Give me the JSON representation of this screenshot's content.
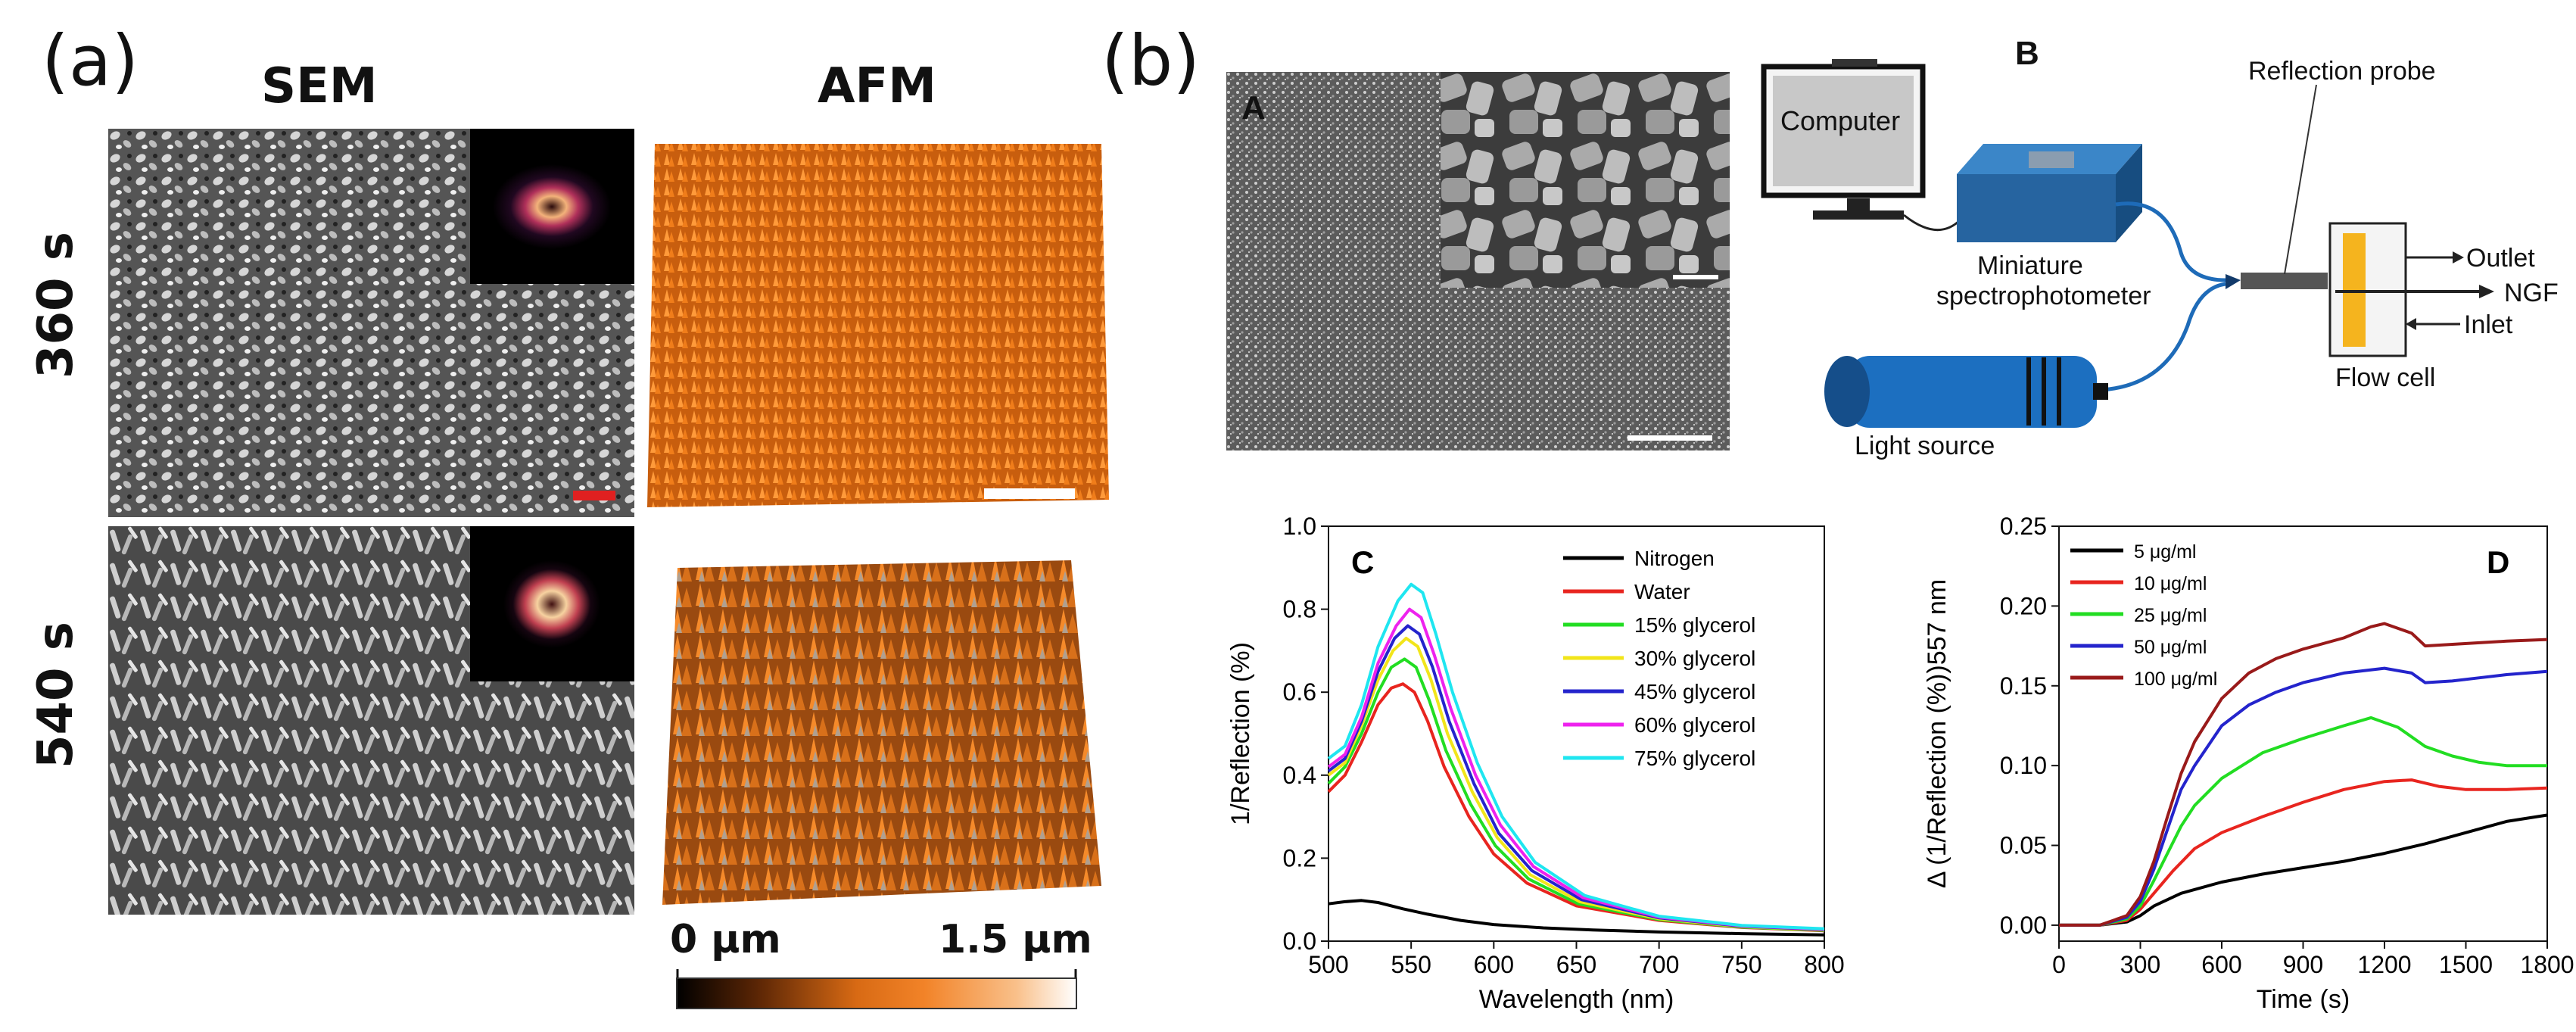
{
  "panel_a": {
    "letter": "(a)",
    "col_sem": "SEM",
    "col_afm": "AFM",
    "row_top": "360 s",
    "row_bottom": "540 s",
    "colorbar": {
      "min_label": "0 μm",
      "max_label": "1.5 μm"
    }
  },
  "panel_b": {
    "letter": "(b)",
    "subpanel_A": "A",
    "subpanel_B": "B",
    "diagram": {
      "computer": "Computer",
      "spectro_line1": "Miniature",
      "spectro_line2": "spectrophotometer",
      "light_source": "Light source",
      "reflection_probe": "Reflection probe",
      "outlet": "Outlet",
      "ngf": "NGF",
      "inlet": "Inlet",
      "flow_cell": "Flow cell"
    }
  },
  "colors": {
    "afm_orange": "#f07d1a",
    "flow_blue": "#1f6fb2",
    "nitrogen": "#000000",
    "water": "#e8251f",
    "g15": "#22dd22",
    "g30": "#f2e51a",
    "g45": "#2424cc",
    "g60": "#ee22ee",
    "g75": "#1fe6f0"
  },
  "chart_data": [
    {
      "id": "C",
      "type": "line",
      "label": "C",
      "xlabel": "Wavelength (nm)",
      "ylabel": "1/Reflection (%)",
      "xlim": [
        500,
        800
      ],
      "ylim": [
        0.0,
        1.0
      ],
      "xticks": [
        500,
        550,
        600,
        650,
        700,
        750,
        800
      ],
      "yticks": [
        0.0,
        0.2,
        0.4,
        0.6,
        0.8,
        1.0
      ],
      "xtick_labels": [
        "500",
        "550",
        "600",
        "650",
        "700",
        "750",
        "800"
      ],
      "ytick_labels": [
        "0.0",
        "0.2",
        "0.4",
        "0.6",
        "0.8",
        "1.0"
      ],
      "series": [
        {
          "name": "Nitrogen",
          "color": "#000000",
          "x": [
            500,
            510,
            520,
            530,
            545,
            560,
            580,
            600,
            630,
            660,
            700,
            750,
            800
          ],
          "y": [
            0.09,
            0.095,
            0.098,
            0.093,
            0.078,
            0.065,
            0.05,
            0.04,
            0.032,
            0.027,
            0.022,
            0.018,
            0.015
          ]
        },
        {
          "name": "Water",
          "color": "#e8251f",
          "x": [
            500,
            510,
            520,
            530,
            538,
            545,
            552,
            560,
            570,
            585,
            600,
            620,
            650,
            700,
            750,
            800
          ],
          "y": [
            0.36,
            0.4,
            0.48,
            0.57,
            0.61,
            0.62,
            0.6,
            0.53,
            0.42,
            0.3,
            0.21,
            0.14,
            0.085,
            0.05,
            0.033,
            0.025
          ]
        },
        {
          "name": "15% glycerol",
          "color": "#22dd22",
          "x": [
            500,
            510,
            520,
            530,
            538,
            546,
            553,
            561,
            571,
            586,
            601,
            621,
            651,
            700,
            750,
            800
          ],
          "y": [
            0.38,
            0.42,
            0.5,
            0.6,
            0.66,
            0.68,
            0.66,
            0.58,
            0.46,
            0.33,
            0.23,
            0.15,
            0.09,
            0.052,
            0.034,
            0.026
          ]
        },
        {
          "name": "30% glycerol",
          "color": "#f2e51a",
          "x": [
            500,
            510,
            520,
            530,
            539,
            547,
            554,
            562,
            572,
            587,
            602,
            622,
            652,
            700,
            750,
            800
          ],
          "y": [
            0.4,
            0.43,
            0.52,
            0.63,
            0.7,
            0.73,
            0.71,
            0.63,
            0.5,
            0.36,
            0.25,
            0.16,
            0.095,
            0.054,
            0.035,
            0.027
          ]
        },
        {
          "name": "45% glycerol",
          "color": "#2424cc",
          "x": [
            500,
            510,
            520,
            530,
            540,
            548,
            555,
            563,
            573,
            588,
            603,
            623,
            653,
            700,
            750,
            800
          ],
          "y": [
            0.41,
            0.44,
            0.53,
            0.65,
            0.73,
            0.76,
            0.74,
            0.66,
            0.53,
            0.38,
            0.26,
            0.17,
            0.1,
            0.056,
            0.036,
            0.028
          ]
        },
        {
          "name": "60% glycerol",
          "color": "#ee22ee",
          "x": [
            500,
            510,
            520,
            530,
            541,
            549,
            556,
            564,
            574,
            589,
            604,
            624,
            654,
            700,
            750,
            800
          ],
          "y": [
            0.42,
            0.45,
            0.54,
            0.67,
            0.76,
            0.8,
            0.78,
            0.69,
            0.56,
            0.4,
            0.28,
            0.18,
            0.105,
            0.058,
            0.037,
            0.029
          ]
        },
        {
          "name": "75% glycerol",
          "color": "#1fe6f0",
          "x": [
            500,
            510,
            520,
            530,
            542,
            550,
            557,
            565,
            575,
            590,
            605,
            625,
            655,
            700,
            750,
            800
          ],
          "y": [
            0.44,
            0.47,
            0.57,
            0.71,
            0.82,
            0.86,
            0.84,
            0.74,
            0.6,
            0.43,
            0.3,
            0.19,
            0.11,
            0.06,
            0.038,
            0.03
          ]
        }
      ]
    },
    {
      "id": "D",
      "type": "line",
      "label": "D",
      "xlabel": "Time (s)",
      "ylabel": "Δ (1/Reflection (%))557 nm",
      "xlim": [
        0,
        1800
      ],
      "ylim": [
        -0.01,
        0.25
      ],
      "xticks": [
        0,
        300,
        600,
        900,
        1200,
        1500,
        1800
      ],
      "yticks": [
        0.0,
        0.05,
        0.1,
        0.15,
        0.2,
        0.25
      ],
      "xtick_labels": [
        "0",
        "300",
        "600",
        "900",
        "1200",
        "1500",
        "1800"
      ],
      "ytick_labels": [
        "0.00",
        "0.05",
        "0.10",
        "0.15",
        "0.20",
        "0.25"
      ],
      "series": [
        {
          "name": "5 μg/ml",
          "color": "#000000",
          "x": [
            0,
            150,
            250,
            300,
            350,
            450,
            600,
            750,
            900,
            1050,
            1200,
            1350,
            1500,
            1650,
            1800
          ],
          "y": [
            0,
            0,
            0.002,
            0.006,
            0.012,
            0.02,
            0.027,
            0.032,
            0.036,
            0.04,
            0.045,
            0.051,
            0.058,
            0.065,
            0.069
          ]
        },
        {
          "name": "10 μg/ml",
          "color": "#e8251f",
          "x": [
            0,
            150,
            250,
            300,
            350,
            420,
            500,
            600,
            750,
            900,
            1050,
            1200,
            1300,
            1400,
            1500,
            1650,
            1800
          ],
          "y": [
            0,
            0,
            0.003,
            0.01,
            0.02,
            0.034,
            0.048,
            0.058,
            0.068,
            0.077,
            0.085,
            0.09,
            0.091,
            0.087,
            0.085,
            0.085,
            0.086
          ]
        },
        {
          "name": "25 μg/ml",
          "color": "#22dd22",
          "x": [
            0,
            150,
            250,
            300,
            350,
            400,
            450,
            500,
            600,
            750,
            900,
            1050,
            1150,
            1250,
            1350,
            1450,
            1550,
            1650,
            1800
          ],
          "y": [
            0,
            0,
            0.004,
            0.012,
            0.028,
            0.045,
            0.062,
            0.075,
            0.092,
            0.108,
            0.117,
            0.125,
            0.13,
            0.124,
            0.112,
            0.106,
            0.102,
            0.1,
            0.1
          ]
        },
        {
          "name": "50 μg/ml",
          "color": "#2424cc",
          "x": [
            0,
            150,
            250,
            300,
            350,
            400,
            450,
            500,
            600,
            700,
            800,
            900,
            1050,
            1200,
            1300,
            1350,
            1450,
            1550,
            1650,
            1800
          ],
          "y": [
            0,
            0,
            0.005,
            0.015,
            0.035,
            0.06,
            0.085,
            0.1,
            0.125,
            0.138,
            0.146,
            0.152,
            0.158,
            0.161,
            0.158,
            0.152,
            0.153,
            0.155,
            0.157,
            0.159
          ]
        },
        {
          "name": "100 μg/ml",
          "color": "#991a1a",
          "x": [
            0,
            150,
            250,
            300,
            350,
            400,
            450,
            500,
            600,
            700,
            800,
            900,
            1050,
            1150,
            1200,
            1300,
            1350,
            1450,
            1550,
            1650,
            1800
          ],
          "y": [
            0,
            0,
            0.006,
            0.018,
            0.04,
            0.068,
            0.095,
            0.115,
            0.142,
            0.158,
            0.167,
            0.173,
            0.18,
            0.187,
            0.189,
            0.183,
            0.175,
            0.176,
            0.177,
            0.178,
            0.179
          ]
        }
      ]
    }
  ]
}
